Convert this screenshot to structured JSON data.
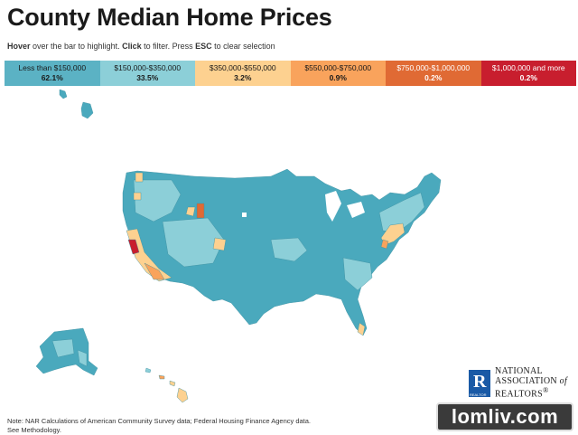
{
  "title": "County Median Home Prices",
  "instructions": {
    "hover": "Hover",
    "t1": " over the bar to highlight. ",
    "click": "Click",
    "t2": " to filter. Press ",
    "esc": "ESC",
    "t3": " to clear selection"
  },
  "legend": [
    {
      "range": "Less than $150,000",
      "pct": "62.1%",
      "color": "#5bb2c4",
      "text_color": "#1a1a1a"
    },
    {
      "range": "$150,000-$350,000",
      "pct": "33.5%",
      "color": "#8ccfd8",
      "text_color": "#1a1a1a"
    },
    {
      "range": "$350,000-$550,000",
      "pct": "3.2%",
      "color": "#fdd190",
      "text_color": "#1a1a1a"
    },
    {
      "range": "$550,000-$750,000",
      "pct": "0.9%",
      "color": "#f9a35c",
      "text_color": "#1a1a1a"
    },
    {
      "range": "$750,000-$1,000,000",
      "pct": "0.2%",
      "color": "#e06a34",
      "text_color": "#ffffff"
    },
    {
      "range": "$1,000,000 and more",
      "pct": "0.2%",
      "color": "#c81e2e",
      "text_color": "#ffffff"
    }
  ],
  "colors": {
    "base": "#4aa9bd",
    "light": "#8ccfd8",
    "mid": "#fdd190",
    "orange": "#f9a35c",
    "dark_orange": "#e06a34",
    "red": "#c81e2e",
    "border": "#3b8ea0"
  },
  "logo": {
    "line1": "NATIONAL",
    "line2a": "ASSOCIATION ",
    "line2b": "of",
    "line3": "REALTORS",
    "reg": "®",
    "mark_sub": "REALTOR"
  },
  "note": {
    "line1": "Note: NAR Calculations of American Community Survey data; Federal Housing Finance Agency data.",
    "line2": "See Methodology."
  },
  "watermark": "lomliv.com"
}
